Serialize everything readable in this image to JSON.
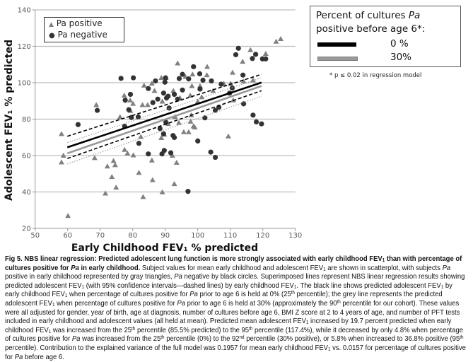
{
  "chart_data": {
    "type": "scatter",
    "xlabel": "Early Childhood FEV₁ % predicted",
    "ylabel": "Adolescent FEV₁ % predicted",
    "xlim": [
      50,
      130
    ],
    "ylim": [
      20,
      140
    ],
    "xticks": [
      50,
      60,
      70,
      80,
      90,
      100,
      110,
      120,
      130
    ],
    "yticks": [
      20,
      40,
      60,
      80,
      100,
      120,
      140
    ],
    "grid": "horizontal",
    "legend_placement": "top-left",
    "series": [
      {
        "name": "Pa positive",
        "marker": "triangle",
        "color": "#808080",
        "points": [
          [
            58.1,
            71.9
          ],
          [
            58.7,
            60
          ],
          [
            58.1,
            56.3
          ],
          [
            60.1,
            26.9
          ],
          [
            68.8,
            87.8
          ],
          [
            68.3,
            58.7
          ],
          [
            72.2,
            54.1
          ],
          [
            71.6,
            39.2
          ],
          [
            73.6,
            48.3
          ],
          [
            74.1,
            57.1
          ],
          [
            74.6,
            54.8
          ],
          [
            74.9,
            42.5
          ],
          [
            76.1,
            81.2
          ],
          [
            77.4,
            93.0
          ],
          [
            77.5,
            63.2
          ],
          [
            78.4,
            61.2
          ],
          [
            79.2,
            90.4
          ],
          [
            79.3,
            84.6
          ],
          [
            80.1,
            88.5
          ],
          [
            80.2,
            60.2
          ],
          [
            81.9,
            50.6
          ],
          [
            82.5,
            70.3
          ],
          [
            83.0,
            87.8
          ],
          [
            83.2,
            37.3
          ],
          [
            83.5,
            98.5
          ],
          [
            84.6,
            87.8
          ],
          [
            85.9,
            99.6
          ],
          [
            85.9,
            57.4
          ],
          [
            86.1,
            46.6
          ],
          [
            86.7,
            95.6
          ],
          [
            88.8,
            102.7
          ],
          [
            88.8,
            69.7
          ],
          [
            89.1,
            39.9
          ],
          [
            89.1,
            89.7
          ],
          [
            89.7,
            71.6
          ],
          [
            90.2,
            102.7
          ],
          [
            90.9,
            77.4
          ],
          [
            92.2,
            60
          ],
          [
            92.5,
            95.6
          ],
          [
            92.8,
            44.4
          ],
          [
            93.0,
            81.3
          ],
          [
            93.5,
            56.1
          ],
          [
            93.8,
            110.7
          ],
          [
            94.2,
            78.0
          ],
          [
            94.5,
            91.7
          ],
          [
            95.7,
            72.9
          ],
          [
            96.2,
            103.3
          ],
          [
            97.2,
            72.9
          ],
          [
            97.7,
            93.0
          ],
          [
            97.8,
            78.7
          ],
          [
            98.0,
            82.2
          ],
          [
            98.2,
            98.2
          ],
          [
            98.4,
            104.6
          ],
          [
            98.7,
            76.1
          ],
          [
            99.1,
            75.5
          ],
          [
            100.0,
            89.7
          ],
          [
            100.7,
            98.2
          ],
          [
            101.2,
            92.1
          ],
          [
            102.8,
            104.2
          ],
          [
            102.9,
            108.8
          ],
          [
            104.7,
            95.6
          ],
          [
            108.0,
            99.5
          ],
          [
            109.4,
            70.6
          ],
          [
            110.1,
            99.5
          ],
          [
            110.7,
            105.6
          ],
          [
            110.9,
            90.4
          ],
          [
            113.8,
            111.6
          ],
          [
            114.1,
            100.8
          ],
          [
            116.2,
            118.0
          ],
          [
            117.0,
            101.4
          ],
          [
            120.9,
            115.9
          ],
          [
            124.1,
            122.6
          ],
          [
            125.5,
            124.1
          ]
        ]
      },
      {
        "name": "Pa negative",
        "marker": "circle",
        "color": "#333333",
        "points": [
          [
            63.2,
            77.0
          ],
          [
            69.1,
            84.8
          ],
          [
            76.4,
            102.4
          ],
          [
            77.5,
            76.1
          ],
          [
            77.7,
            90.4
          ],
          [
            78.8,
            85.2
          ],
          [
            79.3,
            93.6
          ],
          [
            79.6,
            80.9
          ],
          [
            80.2,
            102.7
          ],
          [
            81.7,
            81.2
          ],
          [
            81.9,
            66.7
          ],
          [
            84.8,
            96.8
          ],
          [
            84.8,
            60.9
          ],
          [
            86.2,
            89.1
          ],
          [
            87.0,
            101.0
          ],
          [
            87.7,
            91.0
          ],
          [
            88.4,
            74.8
          ],
          [
            89.0,
            60.9
          ],
          [
            89.5,
            94.3
          ],
          [
            89.5,
            71.9
          ],
          [
            89.7,
            62.8
          ],
          [
            89.9,
            100.3
          ],
          [
            90.1,
            102.7
          ],
          [
            90.2,
            78.3
          ],
          [
            90.4,
            91.6
          ],
          [
            90.9,
            92.6
          ],
          [
            91.2,
            86.1
          ],
          [
            91.7,
            61.5
          ],
          [
            92.4,
            71.0
          ],
          [
            92.8,
            69.9
          ],
          [
            92.8,
            93.6
          ],
          [
            93.8,
            91.0
          ],
          [
            94.3,
            102.3
          ],
          [
            95.3,
            104.6
          ],
          [
            95.3,
            96.0
          ],
          [
            97.0,
            40.3
          ],
          [
            97.2,
            102.1
          ],
          [
            98.7,
            108.8
          ],
          [
            100.0,
            68.0
          ],
          [
            100.6,
            104.9
          ],
          [
            100.7,
            96.5
          ],
          [
            101.6,
            101.4
          ],
          [
            102.2,
            80.7
          ],
          [
            104.0,
            61.9
          ],
          [
            104.2,
            101.0
          ],
          [
            105.4,
            59.0
          ],
          [
            105.4,
            84.8
          ],
          [
            106.5,
            86.5
          ],
          [
            107.2,
            99.2
          ],
          [
            109.8,
            94.3
          ],
          [
            110.6,
            97.1
          ],
          [
            111.7,
            115.4
          ],
          [
            112.5,
            118.9
          ],
          [
            113.9,
            104.2
          ],
          [
            114.1,
            88.4
          ],
          [
            116.8,
            113.3
          ],
          [
            117.0,
            82.2
          ],
          [
            117.8,
            115.6
          ],
          [
            118.0,
            78.5
          ],
          [
            119.6,
            77.4
          ],
          [
            119.9,
            113.1
          ],
          [
            120.9,
            113.1
          ]
        ]
      }
    ],
    "regression_lines": [
      {
        "name": "0%",
        "style": "solid",
        "color": "#000000",
        "x": [
          59.9,
          119.6
        ],
        "y": [
          64.5,
          100.1
        ]
      },
      {
        "name": "0% CI upper",
        "style": "dashed",
        "color": "#000000",
        "x": [
          59.9,
          119.6
        ],
        "y": [
          70.6,
          104.6
        ]
      },
      {
        "name": "0% CI lower",
        "style": "dashed",
        "color": "#000000",
        "x": [
          59.9,
          119.6
        ],
        "y": [
          58.4,
          95.6
        ]
      },
      {
        "name": "30%",
        "style": "solid",
        "color": "#999999",
        "x": [
          59.9,
          119.6
        ],
        "y": [
          61.2,
          98.2
        ]
      },
      {
        "name": "30% CI upper",
        "style": "dotted",
        "color": "#999999",
        "x": [
          59.9,
          119.6
        ],
        "y": [
          67.1,
          102.7
        ]
      },
      {
        "name": "30% CI lower",
        "style": "dotted",
        "color": "#999999",
        "x": [
          59.9,
          119.6
        ],
        "y": [
          55.4,
          92.6
        ]
      }
    ]
  },
  "legend_points": {
    "positive": "Pa positive",
    "negative": "Pa negative"
  },
  "legend_lines": {
    "title_line1_a": "Percent of cultures ",
    "title_line1_b": "Pa",
    "title_line2": "positive before age 6*:",
    "zero": "0 %",
    "thirty": "30%",
    "colors": {
      "zero": "#000000",
      "thirty": "#999999"
    }
  },
  "footnote": "* p ≤ 0.02 in regression model",
  "caption_lines": [
    [
      {
        "t": "Fig 5. NBS linear regression: Predicted adolescent lung function is more strongly associated with early childhood FEV",
        "b": 1
      },
      {
        "t": "1",
        "b": 1,
        "sub": 1
      },
      {
        "t": " than with percentage of",
        "b": 1
      }
    ],
    [
      {
        "t": "cultures positive for ",
        "b": 1
      },
      {
        "t": "Pa",
        "b": 1,
        "i": 1
      },
      {
        "t": " in early childhood.",
        "b": 1
      },
      {
        "t": " Subject values for mean early childhood and adolescent FEV"
      },
      {
        "t": "1",
        "sub": 1
      },
      {
        "t": " are shown in scatterplot, with subjects "
      },
      {
        "t": "Pa",
        "i": 1
      }
    ],
    [
      {
        "t": "positive in early childhood represented by gray triangles, "
      },
      {
        "t": "Pa",
        "i": 1
      },
      {
        "t": " negative by black circles. Superimposed lines represent NBS linear regression results showing"
      }
    ],
    [
      {
        "t": "predicted adolescent FEV"
      },
      {
        "t": "1",
        "sub": 1
      },
      {
        "t": " (with 95% confidence intervals—dashed lines) by early childhood FEV"
      },
      {
        "t": "1",
        "sub": 1
      },
      {
        "t": ". The black line shows predicted adolescent FEV"
      },
      {
        "t": "1",
        "sub": 1
      },
      {
        "t": " by"
      }
    ],
    [
      {
        "t": "early childhood FEV"
      },
      {
        "t": "1",
        "sub": 1
      },
      {
        "t": " when percentage of cultures positive for "
      },
      {
        "t": "Pa",
        "i": 1
      },
      {
        "t": " prior to age 6 is held at 0% (25"
      },
      {
        "t": "th",
        "sup": 1
      },
      {
        "t": " percentile); the grey line represents the predicted"
      }
    ],
    [
      {
        "t": "adolescent FEV"
      },
      {
        "t": "1",
        "sub": 1
      },
      {
        "t": " when percentage of cultures positive for "
      },
      {
        "t": "Pa",
        "i": 1
      },
      {
        "t": " prior to age 6 is held at 30% (approximately the 90"
      },
      {
        "t": "th",
        "sup": 1
      },
      {
        "t": " percentile for our cohort). These values"
      }
    ],
    [
      {
        "t": "were all adjusted for gender, year of birth, age at diagnosis, number of cultures before age 6, BMI Z score at 2 to 4 years of age, and number of PFT tests"
      }
    ],
    [
      {
        "t": "included in early childhood and adolescent values (all held at mean). Predicted mean adolescent FEV"
      },
      {
        "t": "1",
        "sub": 1
      },
      {
        "t": " increased by 19.7 percent predicted when early"
      }
    ],
    [
      {
        "t": "childhood FEV"
      },
      {
        "t": "1",
        "sub": 1
      },
      {
        "t": " was increased from the 25"
      },
      {
        "t": "th",
        "sup": 1
      },
      {
        "t": " percentile (85.5% predicted) to the 95"
      },
      {
        "t": "th",
        "sup": 1
      },
      {
        "t": " percentile (117.4%), while it decreased by only 4.8% when percentage"
      }
    ],
    [
      {
        "t": "of cultures positive for "
      },
      {
        "t": "Pa",
        "i": 1
      },
      {
        "t": " was increased from the 25"
      },
      {
        "t": "th",
        "sup": 1
      },
      {
        "t": " percentile (0%) to the 92"
      },
      {
        "t": "nd",
        "sup": 1
      },
      {
        "t": " percentile (30% positive), or 5.8% when increased to 36.8% positive (95"
      },
      {
        "t": "th",
        "sup": 1
      }
    ],
    [
      {
        "t": "percentile). Contribution to the explained variance of the full model was 0.1957 for mean early childhood FEV"
      },
      {
        "t": "1",
        "sub": 1
      },
      {
        "t": " vs. 0.0157 for percentage of cultures positive"
      }
    ],
    [
      {
        "t": "for "
      },
      {
        "t": "Pa",
        "i": 1
      },
      {
        "t": " before age 6."
      }
    ]
  ]
}
